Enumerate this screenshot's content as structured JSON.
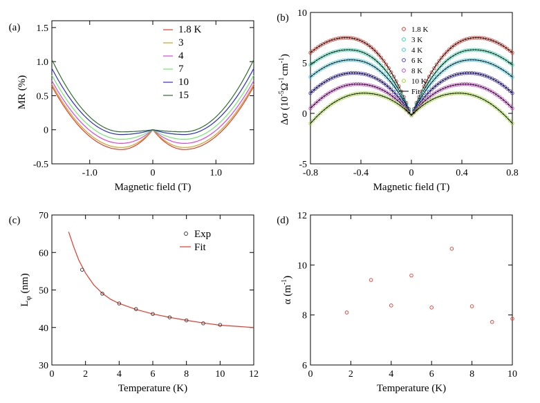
{
  "chart_data": [
    {
      "panel": "(a)",
      "type": "line",
      "xlabel": "Magnetic field (T)",
      "ylabel": "MR (%)",
      "xlim": [
        -1.6,
        1.6
      ],
      "ylim": [
        -0.5,
        1.6
      ],
      "xticks": [
        -1.0,
        0,
        1.0
      ],
      "xtick_labels": [
        "-1.0",
        "0",
        "1.0"
      ],
      "yticks": [
        -0.5,
        0,
        0.5,
        1.0,
        1.5
      ],
      "ytick_labels": [
        "-0.5",
        "0",
        "0.5",
        "1.0",
        "1.5"
      ],
      "legend_position": "top-center",
      "series": [
        {
          "name": "1.8 K",
          "color": "#e8372a",
          "min": -0.29,
          "end": 0.64
        },
        {
          "name": "3",
          "color": "#c8a31c",
          "min": -0.26,
          "end": 0.67
        },
        {
          "name": "4",
          "color": "#e040e0",
          "min": -0.2,
          "end": 0.72
        },
        {
          "name": "7",
          "color": "#6ee86e",
          "min": -0.14,
          "end": 0.8
        },
        {
          "name": "10",
          "color": "#2a2ad8",
          "min": -0.07,
          "end": 0.9
        },
        {
          "name": "15",
          "color": "#2b6e2b",
          "min": -0.03,
          "end": 1.03
        }
      ]
    },
    {
      "panel": "(b)",
      "type": "scatter",
      "xlabel": "Magnetic field (T)",
      "ylabel": "Δσ (10",
      "ylabel_sup1": "-5",
      "ylabel_mid": "Ω",
      "ylabel_sup2": "-1",
      "ylabel_mid2": "cm",
      "ylabel_sup3": "-1",
      "ylabel_end": ")",
      "xlim": [
        -0.8,
        0.8
      ],
      "ylim": [
        -5,
        10
      ],
      "xticks": [
        -0.8,
        -0.4,
        0,
        0.4,
        0.8
      ],
      "xtick_labels": [
        "-0.8",
        "-0.4",
        "0",
        "0.4",
        "0.8"
      ],
      "yticks": [
        -5,
        0,
        5,
        10
      ],
      "ytick_labels": [
        "-5",
        "0",
        "5",
        "10"
      ],
      "legend_position": "top-center",
      "fit_label": "Fit",
      "series": [
        {
          "name": "1.8 K",
          "color": "#e8372a",
          "peak": 7.5,
          "peak_x": 0.52,
          "end": 6.0
        },
        {
          "name": "3 K",
          "color": "#2ad8a8",
          "peak": 6.3,
          "peak_x": 0.5,
          "end": 4.8
        },
        {
          "name": "4 K",
          "color": "#38c8e8",
          "peak": 5.3,
          "peak_x": 0.48,
          "end": 3.6
        },
        {
          "name": "6 K",
          "color": "#4a3ad0",
          "peak": 4.0,
          "peak_x": 0.46,
          "end": 2.0
        },
        {
          "name": "8 K",
          "color": "#d040d0",
          "peak": 2.9,
          "peak_x": 0.43,
          "end": 0.5
        },
        {
          "name": "10 K",
          "color": "#9ad82a",
          "peak": 2.0,
          "peak_x": 0.38,
          "end": -1.0
        }
      ]
    },
    {
      "panel": "(c)",
      "type": "scatter",
      "xlabel": "Temperature (K)",
      "ylabel": "L",
      "ylabel_sub": "φ",
      "ylabel_end": " (nm)",
      "xlim": [
        0,
        12
      ],
      "ylim": [
        30,
        70
      ],
      "xticks": [
        0,
        2,
        4,
        6,
        8,
        10,
        12
      ],
      "xtick_labels": [
        "0",
        "2",
        "4",
        "6",
        "8",
        "10",
        "12"
      ],
      "yticks": [
        30,
        40,
        50,
        60,
        70
      ],
      "ytick_labels": [
        "30",
        "40",
        "50",
        "60",
        "70"
      ],
      "legend_position": "top-right",
      "exp_label": "Exp",
      "fit_label": "Fit",
      "exp_x": [
        1.8,
        3,
        4,
        5,
        6,
        7,
        8,
        9,
        10
      ],
      "exp_y": [
        55.4,
        49.0,
        46.4,
        44.9,
        43.6,
        42.7,
        41.9,
        41.1,
        40.7
      ],
      "fit_x": [
        1.0,
        1.3,
        1.6,
        2.0,
        2.5,
        3.0,
        3.5,
        4.0,
        5.0,
        6.0,
        7.0,
        8.0,
        9.0,
        10.0,
        11.0,
        12.0
      ],
      "fit_y": [
        65.5,
        61.5,
        58.0,
        54.5,
        51.3,
        49.1,
        47.5,
        46.4,
        44.8,
        43.6,
        42.7,
        41.9,
        41.2,
        40.6,
        40.3,
        40.0
      ],
      "exp_color": "#333333",
      "fit_color": "#e8372a"
    },
    {
      "panel": "(d)",
      "type": "scatter",
      "xlabel": "Temperature (K)",
      "ylabel": "α (m",
      "ylabel_sup": "-1",
      "ylabel_end": ")",
      "xlim": [
        0,
        10
      ],
      "ylim": [
        6,
        12
      ],
      "xticks": [
        0,
        2,
        4,
        6,
        8,
        10
      ],
      "xtick_labels": [
        "0",
        "2",
        "4",
        "6",
        "8",
        "10"
      ],
      "yticks": [
        6,
        8,
        10,
        12
      ],
      "ytick_labels": [
        "6",
        "8",
        "10",
        "12"
      ],
      "x": [
        1.8,
        3,
        4,
        5,
        6,
        7,
        8,
        9,
        10
      ],
      "y": [
        8.1,
        9.4,
        8.38,
        9.58,
        8.3,
        10.65,
        8.35,
        7.72,
        7.85
      ],
      "color": "#e8372a"
    }
  ]
}
